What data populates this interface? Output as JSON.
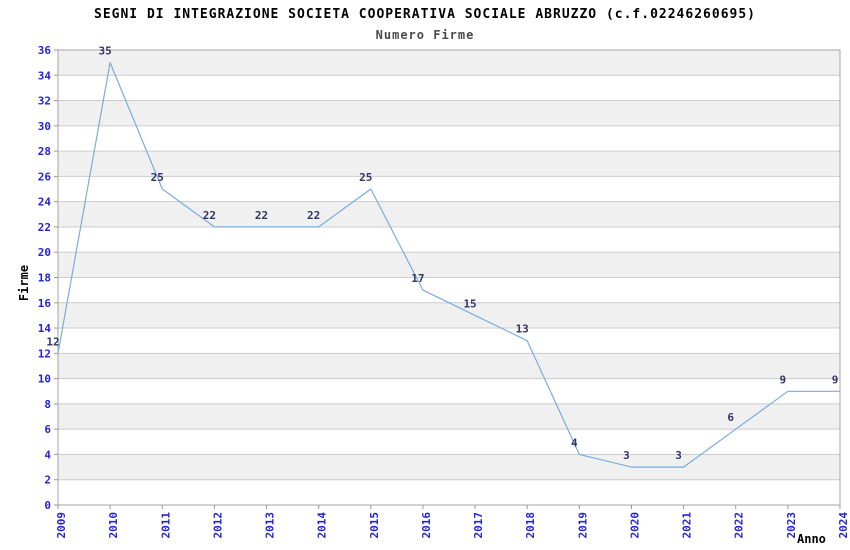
{
  "header": {
    "title": "SEGNI DI INTEGRAZIONE SOCIETA COOPERATIVA SOCIALE ABRUZZO (c.f.02246260695)",
    "subtitle": "Numero Firme"
  },
  "chart_data": {
    "type": "line",
    "title": "SEGNI DI INTEGRAZIONE SOCIETA COOPERATIVA SOCIALE ABRUZZO (c.f.02246260695)",
    "subtitle": "Numero Firme",
    "xlabel": "Anno",
    "ylabel": "Firme",
    "x": [
      "2009",
      "2010",
      "2011",
      "2012",
      "2013",
      "2014",
      "2015",
      "2016",
      "2017",
      "2018",
      "2019",
      "2020",
      "2021",
      "2022",
      "2023",
      "2024"
    ],
    "values": [
      12,
      35,
      25,
      22,
      22,
      22,
      25,
      17,
      15,
      13,
      4,
      3,
      3,
      6,
      9,
      9
    ],
    "ylim": [
      0,
      36
    ],
    "ytick_step": 2,
    "grid": true,
    "alternating_bands": true,
    "legend": "none",
    "point_labels_shown": true,
    "colors": {
      "line": "#7aacdf",
      "tick_label": "#2323dd",
      "point_label": "#333366",
      "band": "#f0f0f0",
      "grid": "#cccccc",
      "border": "#a6a6a6",
      "tick_mark": "#999999",
      "title_text": "#000000",
      "background": "#ffffff"
    }
  }
}
